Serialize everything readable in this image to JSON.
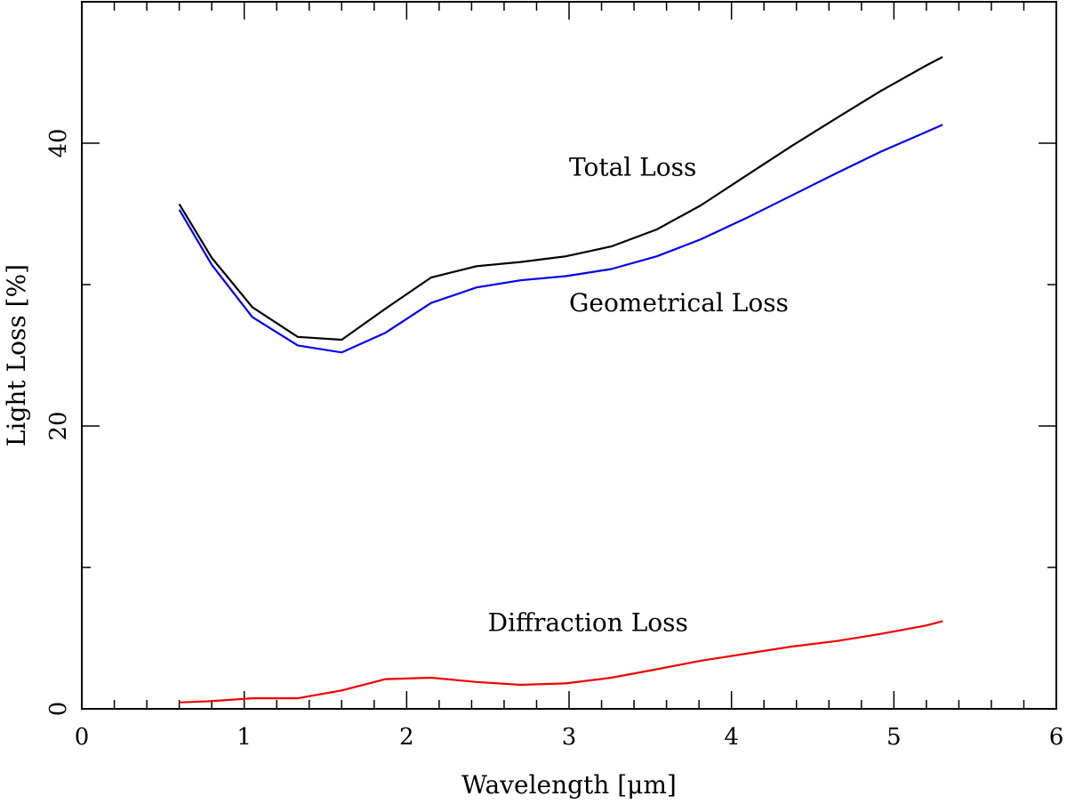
{
  "chart_data": {
    "type": "line",
    "title": "",
    "xlabel": "Wavelength [μm]",
    "ylabel": "Light Loss [%]",
    "xlim": [
      0,
      6
    ],
    "ylim": [
      0,
      50
    ],
    "x_ticks": [
      0,
      1,
      2,
      3,
      4,
      5,
      6
    ],
    "y_ticks": [
      0,
      20,
      40
    ],
    "x_tick_labels": [
      "0",
      "1",
      "2",
      "3",
      "4",
      "5",
      "6"
    ],
    "y_tick_labels": [
      "0",
      "20",
      "40"
    ],
    "grid": false,
    "legend": "none",
    "series": [
      {
        "name": "Total Loss",
        "color": "#000000",
        "x": [
          0.6,
          0.8,
          1.05,
          1.33,
          1.6,
          1.87,
          2.15,
          2.43,
          2.7,
          2.98,
          3.26,
          3.54,
          3.81,
          4.09,
          4.37,
          4.65,
          4.92,
          5.2,
          5.3
        ],
        "y": [
          35.7,
          31.9,
          28.4,
          26.3,
          26.1,
          28.3,
          30.5,
          31.3,
          31.6,
          32.0,
          32.7,
          33.9,
          35.6,
          37.7,
          39.8,
          41.8,
          43.7,
          45.5,
          46.1
        ]
      },
      {
        "name": "Geometrical Loss",
        "color": "#0000ee",
        "x": [
          0.6,
          0.8,
          1.05,
          1.33,
          1.6,
          1.87,
          2.15,
          2.43,
          2.7,
          2.98,
          3.26,
          3.54,
          3.81,
          4.09,
          4.37,
          4.65,
          4.92,
          5.2,
          5.3
        ],
        "y": [
          35.3,
          31.4,
          27.7,
          25.7,
          25.2,
          26.6,
          28.7,
          29.8,
          30.3,
          30.6,
          31.1,
          32.0,
          33.2,
          34.7,
          36.3,
          37.9,
          39.4,
          40.8,
          41.3
        ]
      },
      {
        "name": "Diffraction Loss",
        "color": "#ee0000",
        "x": [
          0.6,
          0.8,
          1.05,
          1.33,
          1.6,
          1.87,
          2.15,
          2.43,
          2.7,
          2.98,
          3.26,
          3.54,
          3.81,
          4.09,
          4.37,
          4.65,
          4.92,
          5.2,
          5.3
        ],
        "y": [
          0.45,
          0.55,
          0.75,
          0.75,
          1.3,
          2.1,
          2.2,
          1.9,
          1.7,
          1.8,
          2.2,
          2.8,
          3.4,
          3.9,
          4.4,
          4.8,
          5.3,
          5.9,
          6.2
        ]
      }
    ],
    "annotations": [
      {
        "text": "Total Loss",
        "x": 3.0,
        "y": 37.7
      },
      {
        "text": "Geometrical Loss",
        "x": 3.0,
        "y": 28.1
      },
      {
        "text": "Diffraction Loss",
        "x": 2.5,
        "y": 5.5
      }
    ]
  }
}
